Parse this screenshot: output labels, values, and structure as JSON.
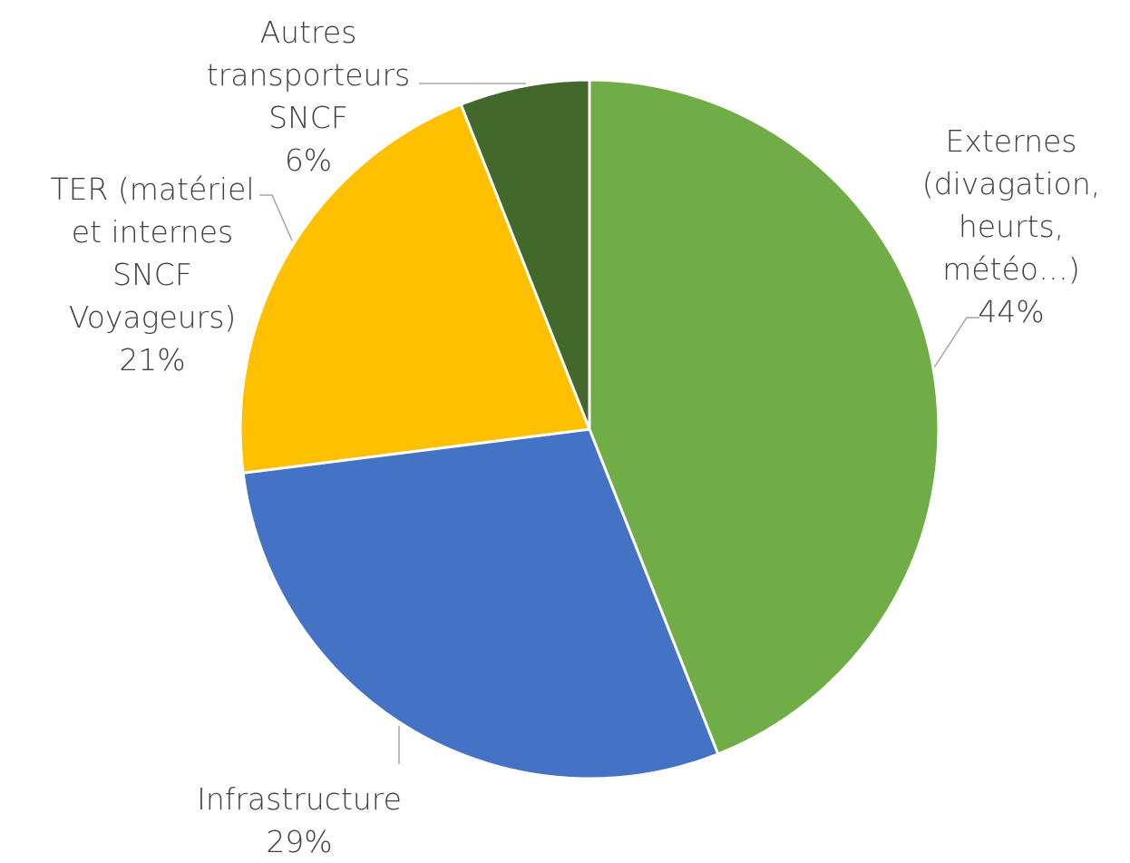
{
  "chart_data": {
    "type": "pie",
    "categories": [
      "Externes (divagation, heurts, météo…)",
      "Infrastructure",
      "TER (matériel et internes SNCF Voyageurs)",
      "Autres transporteurs SNCF"
    ],
    "values": [
      44,
      29,
      21,
      6
    ],
    "value_labels": [
      "44%",
      "29%",
      "21%",
      "6%"
    ],
    "colors": [
      "#70ad47",
      "#4472c4",
      "#ffc000",
      "#43682b"
    ]
  }
}
